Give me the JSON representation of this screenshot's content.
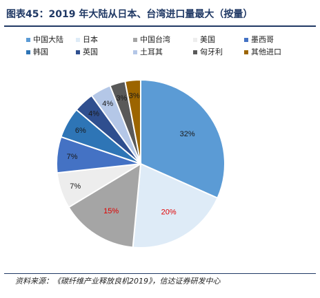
{
  "figure": {
    "title": "图表45：2019 年大陆从日本、台湾进口量最大（按量）",
    "source_label": "资料来源：",
    "source_text": "《碳纤维产业释放良机2019》，信达证券研发中心"
  },
  "chart_data": {
    "type": "pie",
    "title": "",
    "legend_position": "top",
    "start_angle_deg": 0,
    "direction": "clockwise",
    "slices": [
      {
        "label": "中国大陆",
        "value": 32,
        "display": "32%",
        "color": "#5b9bd5",
        "label_color": "#1a1a1a"
      },
      {
        "label": "日本",
        "value": 20,
        "display": "20%",
        "color": "#deebf7",
        "label_color": "#e00000"
      },
      {
        "label": "中国台湾",
        "value": 15,
        "display": "15%",
        "color": "#a5a5a5",
        "label_color": "#e00000"
      },
      {
        "label": "美国",
        "value": 7,
        "display": "7%",
        "color": "#ededed",
        "label_color": "#1a1a1a"
      },
      {
        "label": "墨西哥",
        "value": 7,
        "display": "7%",
        "color": "#4472c4",
        "label_color": "#1a1a1a"
      },
      {
        "label": "韩国",
        "value": 6,
        "display": "6%",
        "color": "#2e75b6",
        "label_color": "#1a1a1a"
      },
      {
        "label": "英国",
        "value": 4,
        "display": "4%",
        "color": "#2f4f8f",
        "label_color": "#1a1a1a"
      },
      {
        "label": "土耳其",
        "value": 4,
        "display": "4%",
        "color": "#b4c7e7",
        "label_color": "#1a1a1a"
      },
      {
        "label": "匈牙利",
        "value": 3,
        "display": "3%",
        "color": "#595959",
        "label_color": "#1a1a1a"
      },
      {
        "label": "其他进口",
        "value": 3,
        "display": "3%",
        "color": "#9c6500",
        "label_color": "#1a1a1a"
      }
    ]
  }
}
